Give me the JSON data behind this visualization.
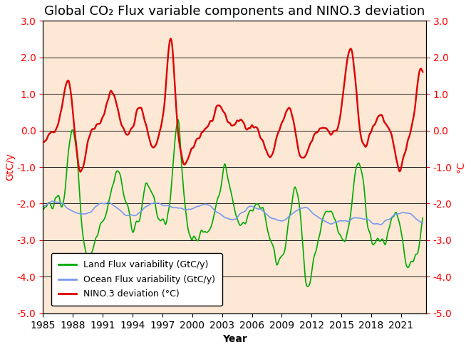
{
  "title": "Global CO₂ Flux variable components and NINO.3 deviation",
  "ylabel_left": "GtC/y",
  "ylabel_right": "°C",
  "xlabel": "Year",
  "ylim": [
    -5.0,
    3.0
  ],
  "yticks": [
    -5.0,
    -4.0,
    -3.0,
    -2.0,
    -1.0,
    0.0,
    1.0,
    2.0,
    3.0
  ],
  "xticks": [
    1985,
    1988,
    1991,
    1994,
    1997,
    2000,
    2003,
    2006,
    2009,
    2012,
    2015,
    2018,
    2021
  ],
  "xlim": [
    1985,
    2023.5
  ],
  "background_color": "#fce8d5",
  "land_color": "#00aa00",
  "ocean_color": "#7799ee",
  "nino_color": "#dd0000",
  "legend_labels": [
    "Land Flux variability (GtC/y)",
    "Ocean Flux variability (GtC/y)",
    "NINO.3 deviation (°C)"
  ],
  "title_fontsize": 13,
  "axis_fontsize": 10,
  "tick_fontsize": 10,
  "left_tick_color": "red",
  "right_tick_color": "red"
}
